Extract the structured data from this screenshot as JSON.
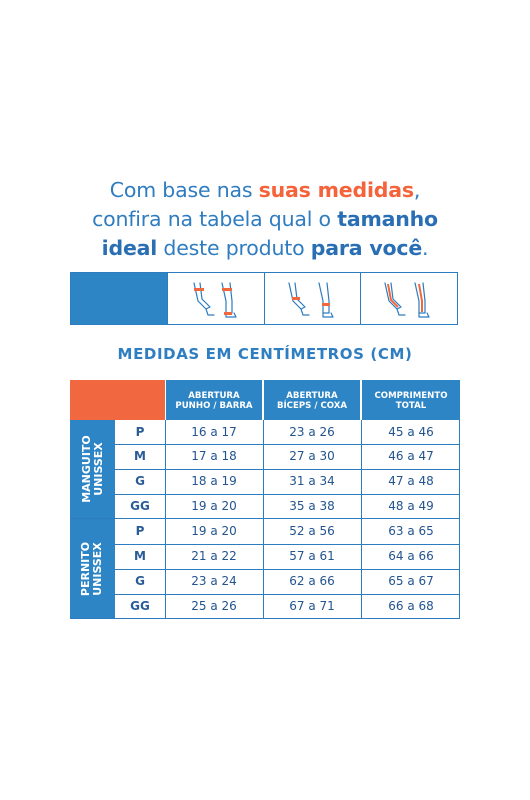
{
  "headline": {
    "l1_a": "Com base nas ",
    "l1_b": "suas medidas",
    "l1_c": ",",
    "l2_a": "confira na tabela qual o ",
    "l2_b": "tamanho",
    "l3_a": "ideal",
    "l3_b": " deste produto ",
    "l3_c": "para você",
    "l3_d": "."
  },
  "icons": [
    "wrist-measure-icon",
    "biceps-measure-icon",
    "length-measure-icon"
  ],
  "subtitle": "MEDIDAS EM CENTÍMETROS (CM)",
  "columns": [
    {
      "l1": "ABERTURA",
      "l2": "PUNHO / BARRA"
    },
    {
      "l1": "ABERTURA",
      "l2": "BÍCEPS /  COXA"
    },
    {
      "l1": "COMPRIMENTO",
      "l2": "TOTAL"
    }
  ],
  "groups": [
    {
      "label": "MANGUITO\nUNISSEX",
      "rows": [
        {
          "size": "P",
          "v": [
            "16 a 17",
            "23 a 26",
            "45 a 46"
          ]
        },
        {
          "size": "M",
          "v": [
            "17 a 18",
            "27 a 30",
            "46 a 47"
          ]
        },
        {
          "size": "G",
          "v": [
            "18 a 19",
            "31 a 34",
            "47 a 48"
          ]
        },
        {
          "size": "GG",
          "v": [
            "19 a 20",
            "35 a 38",
            "48 a 49"
          ]
        }
      ]
    },
    {
      "label": "PERNITO\nUNISSEX",
      "rows": [
        {
          "size": "P",
          "v": [
            "19 a 20",
            "52 a 56",
            "63 a 65"
          ]
        },
        {
          "size": "M",
          "v": [
            "21 a 22",
            "57 a 61",
            "64 a 66"
          ]
        },
        {
          "size": "G",
          "v": [
            "23 a 24",
            "62 a 66",
            "65 a 67"
          ]
        },
        {
          "size": "GG",
          "v": [
            "25 a 26",
            "67 a 71",
            "66 a 68"
          ]
        }
      ]
    }
  ],
  "colors": {
    "blue": "#2e85c6",
    "orange": "#f16840",
    "text": "#23548f"
  }
}
